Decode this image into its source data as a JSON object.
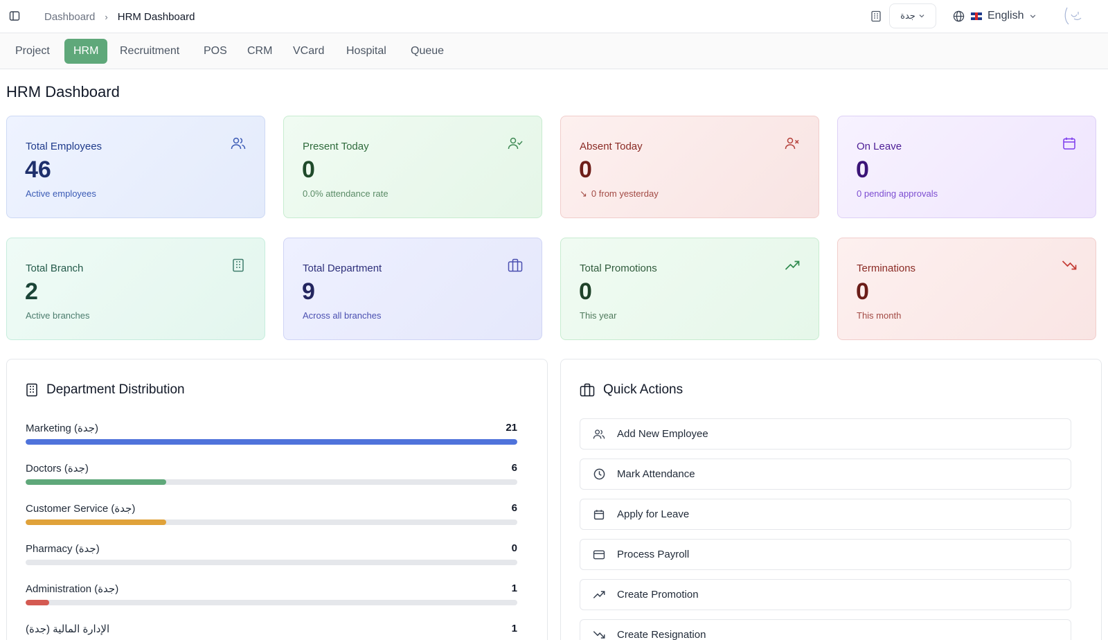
{
  "breadcrumb": {
    "root": "Dashboard",
    "current": "HRM Dashboard"
  },
  "header": {
    "branch": "جدة",
    "language": "English"
  },
  "module_tabs": [
    "Project",
    "HRM",
    "Recruitment",
    "POS",
    "CRM",
    "VCard",
    "Hospital",
    "Queue"
  ],
  "active_tab": "HRM",
  "page_title": "HRM Dashboard",
  "stats": [
    {
      "title": "Total Employees",
      "value": "46",
      "sub": "Active employees",
      "icon": "users-icon"
    },
    {
      "title": "Present Today",
      "value": "0",
      "sub": "0.0% attendance rate",
      "icon": "user-check-icon"
    },
    {
      "title": "Absent Today",
      "value": "0",
      "sub": "0 from yesterday",
      "icon": "user-x-icon"
    },
    {
      "title": "On Leave",
      "value": "0",
      "sub": "0 pending approvals",
      "icon": "calendar-icon"
    },
    {
      "title": "Total Branch",
      "value": "2",
      "sub": "Active branches",
      "icon": "building-icon"
    },
    {
      "title": "Total Department",
      "value": "9",
      "sub": "Across all branches",
      "icon": "briefcase-icon"
    },
    {
      "title": "Total Promotions",
      "value": "0",
      "sub": "This year",
      "icon": "trending-up-icon"
    },
    {
      "title": "Terminations",
      "value": "0",
      "sub": "This month",
      "icon": "trending-down-icon"
    }
  ],
  "colors": {
    "accent": "#5fa87a",
    "blue": "#4f73db",
    "green": "#5fa87a",
    "orange": "#e0a23a",
    "red": "#d45a52"
  },
  "department_distribution": {
    "title": "Department Distribution",
    "items": [
      {
        "label": "Marketing (جدة)",
        "count": "21",
        "fraction": 1.0,
        "color": "#4f73db"
      },
      {
        "label": "Doctors (جدة)",
        "count": "6",
        "fraction": 0.2857,
        "color": "#5fa87a"
      },
      {
        "label": "Customer Service (جدة)",
        "count": "6",
        "fraction": 0.2857,
        "color": "#e0a23a"
      },
      {
        "label": "Pharmacy (جدة)",
        "count": "0",
        "fraction": 0,
        "color": "#9ca3af"
      },
      {
        "label": "Administration (جدة)",
        "count": "1",
        "fraction": 0.0476,
        "color": "#d45a52"
      },
      {
        "label": "الإدارة المالية (جدة)",
        "count": "1",
        "fraction": 0.0476,
        "color": "#4f73db"
      }
    ]
  },
  "quick_actions": {
    "title": "Quick Actions",
    "items": [
      {
        "label": "Add New Employee",
        "icon": "users-icon"
      },
      {
        "label": "Mark Attendance",
        "icon": "clock-icon"
      },
      {
        "label": "Apply for Leave",
        "icon": "calendar-icon"
      },
      {
        "label": "Process Payroll",
        "icon": "credit-card-icon"
      },
      {
        "label": "Create Promotion",
        "icon": "trending-up-icon"
      },
      {
        "label": "Create Resignation",
        "icon": "trending-down-icon"
      }
    ]
  }
}
